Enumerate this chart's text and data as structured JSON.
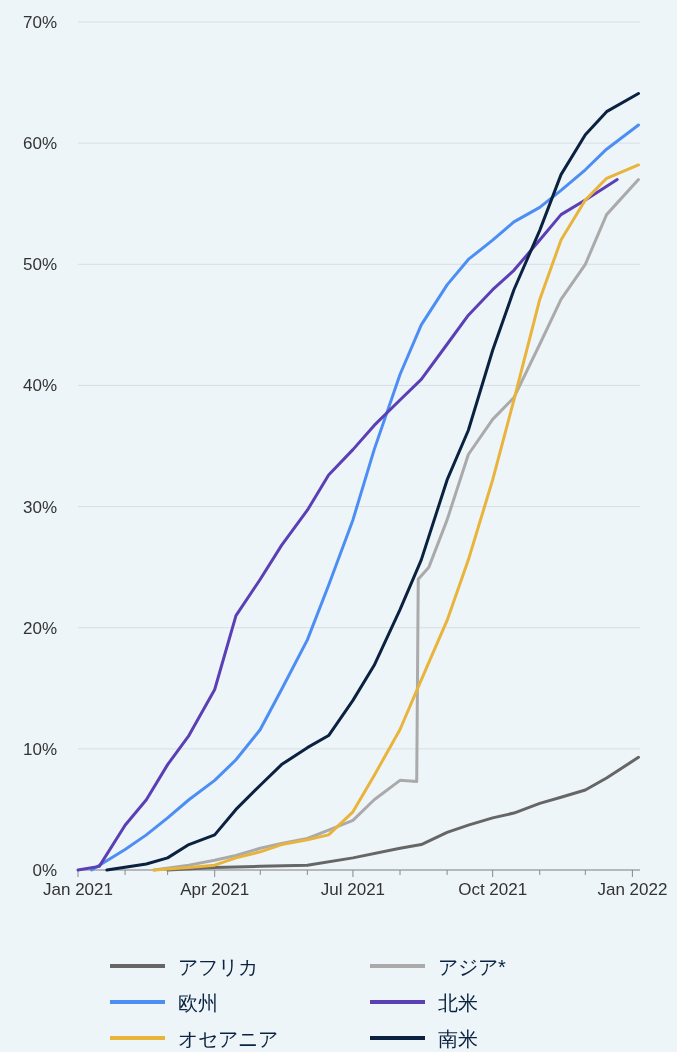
{
  "chart_data": {
    "type": "line",
    "xlim": [
      "2021-01-01",
      "2022-01-06"
    ],
    "xticks": [
      {
        "value": "2021-01-01",
        "label": "Jan 2021"
      },
      {
        "value": "2021-02-01",
        "label": null
      },
      {
        "value": "2021-03-01",
        "label": null
      },
      {
        "value": "2021-04-01",
        "label": "Apr 2021"
      },
      {
        "value": "2021-05-01",
        "label": null
      },
      {
        "value": "2021-06-01",
        "label": null
      },
      {
        "value": "2021-07-01",
        "label": "Jul 2021"
      },
      {
        "value": "2021-08-01",
        "label": null
      },
      {
        "value": "2021-09-01",
        "label": null
      },
      {
        "value": "2021-10-01",
        "label": "Oct 2021"
      },
      {
        "value": "2021-11-01",
        "label": null
      },
      {
        "value": "2021-12-01",
        "label": null
      },
      {
        "value": "2022-01-01",
        "label": "Jan 2022"
      }
    ],
    "ylim": [
      0,
      70
    ],
    "yticks": [
      {
        "value": 0,
        "label": "0%"
      },
      {
        "value": 10,
        "label": "10%"
      },
      {
        "value": 20,
        "label": "20%"
      },
      {
        "value": 30,
        "label": "30%"
      },
      {
        "value": 40,
        "label": "40%"
      },
      {
        "value": 50,
        "label": "50%"
      },
      {
        "value": 60,
        "label": "60%"
      },
      {
        "value": 70,
        "label": "70%"
      }
    ],
    "grid": "y",
    "legend": "bottom",
    "marker": "none",
    "line_style": "solid",
    "series": [
      {
        "name": "アフリカ",
        "color": "#666666",
        "x": [
          "2021-03-01",
          "2021-04-01",
          "2021-05-01",
          "2021-06-01",
          "2021-07-01",
          "2021-08-01",
          "2021-08-15",
          "2021-09-01",
          "2021-09-15",
          "2021-10-01",
          "2021-10-15",
          "2021-11-01",
          "2021-11-15",
          "2021-12-01",
          "2021-12-15",
          "2022-01-05"
        ],
        "values": [
          0,
          0.2,
          0.3,
          0.4,
          1,
          1.8,
          2.1,
          3.1,
          3.7,
          4.3,
          4.7,
          5.5,
          6,
          6.6,
          7.6,
          9.3
        ]
      },
      {
        "name": "アジア*",
        "color": "#aaaaaa",
        "x": [
          "2021-02-20",
          "2021-03-15",
          "2021-04-01",
          "2021-04-15",
          "2021-05-01",
          "2021-05-15",
          "2021-06-01",
          "2021-06-15",
          "2021-07-01",
          "2021-07-15",
          "2021-08-01",
          "2021-08-12",
          "2021-08-13",
          "2021-08-20",
          "2021-09-01",
          "2021-09-15",
          "2021-10-01",
          "2021-10-15",
          "2021-11-01",
          "2021-11-15",
          "2021-12-01",
          "2021-12-15",
          "2022-01-05"
        ],
        "values": [
          0,
          0.4,
          0.8,
          1.2,
          1.8,
          2.2,
          2.6,
          3.3,
          4.1,
          5.8,
          7.4,
          7.3,
          24,
          25,
          28.9,
          34.3,
          37.2,
          39,
          43.4,
          47.1,
          50,
          54.1,
          57
        ]
      },
      {
        "name": "欧州",
        "color": "#4d8ef5",
        "x": [
          "2021-01-10",
          "2021-02-01",
          "2021-02-15",
          "2021-03-01",
          "2021-03-15",
          "2021-04-01",
          "2021-04-15",
          "2021-05-01",
          "2021-05-15",
          "2021-06-01",
          "2021-06-15",
          "2021-07-01",
          "2021-07-15",
          "2021-08-01",
          "2021-08-15",
          "2021-09-01",
          "2021-09-15",
          "2021-10-01",
          "2021-10-15",
          "2021-11-01",
          "2021-11-15",
          "2021-12-01",
          "2021-12-15",
          "2022-01-05"
        ],
        "values": [
          0,
          1.7,
          2.9,
          4.3,
          5.8,
          7.4,
          9.1,
          11.6,
          14.9,
          19,
          23.5,
          28.9,
          34.7,
          40.9,
          45,
          48.3,
          50.4,
          52,
          53.5,
          54.7,
          56.1,
          57.8,
          59.5,
          61.5
        ]
      },
      {
        "name": "北米",
        "color": "#5b3fb5",
        "x": [
          "2021-01-01",
          "2021-01-15",
          "2021-02-01",
          "2021-02-15",
          "2021-03-01",
          "2021-03-15",
          "2021-04-01",
          "2021-04-15",
          "2021-05-01",
          "2021-05-15",
          "2021-06-01",
          "2021-06-15",
          "2021-07-01",
          "2021-07-15",
          "2021-08-01",
          "2021-08-15",
          "2021-09-01",
          "2021-09-15",
          "2021-10-01",
          "2021-10-15",
          "2021-11-01",
          "2021-11-15",
          "2021-12-01",
          "2021-12-22"
        ],
        "values": [
          0,
          0.3,
          3.7,
          5.8,
          8.7,
          11.1,
          14.9,
          21,
          24,
          26.8,
          29.7,
          32.6,
          34.7,
          36.7,
          38.8,
          40.5,
          43.4,
          45.8,
          47.9,
          49.5,
          52,
          54.1,
          55.3,
          57
        ]
      },
      {
        "name": "オセアニア",
        "color": "#e8b43c",
        "x": [
          "2021-02-20",
          "2021-03-15",
          "2021-04-01",
          "2021-04-15",
          "2021-05-01",
          "2021-05-15",
          "2021-06-01",
          "2021-06-15",
          "2021-07-01",
          "2021-07-15",
          "2021-08-01",
          "2021-08-15",
          "2021-09-01",
          "2021-09-15",
          "2021-10-01",
          "2021-10-15",
          "2021-11-01",
          "2021-11-15",
          "2021-12-01",
          "2021-12-15",
          "2022-01-05"
        ],
        "values": [
          0,
          0.2,
          0.4,
          1,
          1.5,
          2.1,
          2.5,
          2.9,
          4.8,
          7.8,
          11.6,
          15.7,
          20.6,
          25.6,
          32.2,
          38.8,
          47.1,
          52,
          55.3,
          57.1,
          58.2
        ]
      },
      {
        "name": "南米",
        "color": "#0a2240",
        "x": [
          "2021-01-20",
          "2021-02-15",
          "2021-03-01",
          "2021-03-15",
          "2021-04-01",
          "2021-04-15",
          "2021-05-01",
          "2021-05-15",
          "2021-06-01",
          "2021-06-15",
          "2021-07-01",
          "2021-07-15",
          "2021-08-01",
          "2021-08-15",
          "2021-09-01",
          "2021-09-15",
          "2021-10-01",
          "2021-10-15",
          "2021-11-01",
          "2021-11-15",
          "2021-12-01",
          "2021-12-15",
          "2022-01-05"
        ],
        "values": [
          0,
          0.5,
          1,
          2.1,
          2.9,
          5,
          7,
          8.7,
          10.1,
          11.1,
          14,
          16.9,
          21.5,
          25.6,
          32.2,
          36.3,
          42.9,
          47.9,
          52.8,
          57.4,
          60.7,
          62.6,
          64.1
        ]
      }
    ]
  }
}
